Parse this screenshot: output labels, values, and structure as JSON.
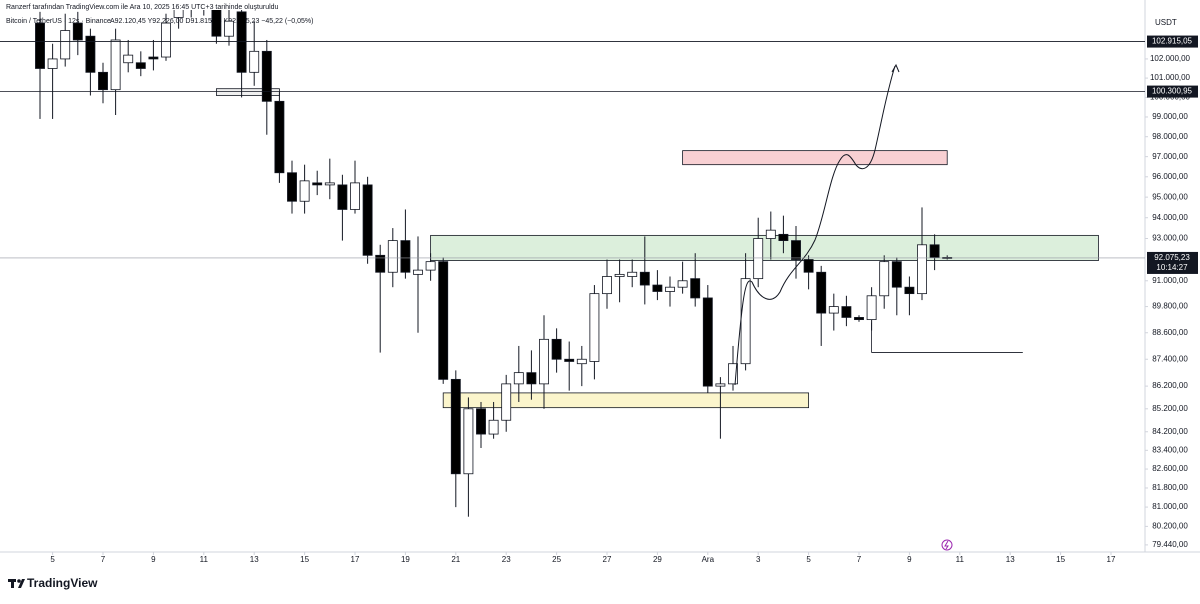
{
  "header": {
    "credit": "Ranzerf tarafından TradingView.com ile Ara 10, 2025 16:45 UTC+3 tarihinde oluşturuldu",
    "symbol": "Bitcoin / TetherUS · 12s · Binance",
    "ohlc": "A92.120,45 Y92.226,00 D91.815,35 K92.075,23 −45,22 (−0,05%)"
  },
  "chart_data": {
    "type": "candlestick",
    "currency": "USDT",
    "log_scale": true,
    "up_color": "#ffffff",
    "down_color": "#000000",
    "open": [
      103900,
      101500,
      102000,
      103900,
      103200,
      101300,
      100400,
      101800,
      101800,
      102100,
      102100,
      104200,
      105200,
      104800,
      104800,
      103200,
      104500,
      101300,
      102400,
      99800,
      96200,
      94800,
      95700,
      95600,
      95600,
      94400,
      95600,
      92200,
      91400,
      92900,
      91300,
      91500,
      91900,
      86500,
      82400,
      85200,
      84100,
      84700,
      86300,
      86800,
      86300,
      88300,
      87400,
      87200,
      87300,
      90400,
      91200,
      91200,
      91400,
      90800,
      90500,
      90700,
      91100,
      90200,
      86200,
      86300,
      87200,
      91100,
      93000,
      93200,
      92900,
      92000,
      91400,
      89500,
      89800,
      89300,
      89200,
      90300,
      91900,
      90700,
      90400,
      92700,
      92100
    ],
    "high": [
      104500,
      102800,
      104400,
      104500,
      103600,
      101800,
      103600,
      103000,
      102400,
      103000,
      104400,
      106000,
      106000,
      106100,
      105200,
      104800,
      105000,
      104000,
      103000,
      100300,
      96800,
      96600,
      96300,
      96900,
      96100,
      96800,
      96000,
      92700,
      93500,
      94400,
      93100,
      92300,
      92100,
      86900,
      85700,
      85500,
      85500,
      86700,
      88000,
      87800,
      89400,
      88800,
      88200,
      88000,
      90800,
      92000,
      92000,
      92000,
      93100,
      91500,
      91200,
      91900,
      92300,
      90800,
      86600,
      88000,
      92300,
      94000,
      94300,
      94100,
      93600,
      92200,
      91700,
      90400,
      90300,
      89400,
      90700,
      92200,
      92100,
      91200,
      94500,
      93200,
      92200
    ],
    "low": [
      98900,
      98900,
      101600,
      102200,
      100100,
      99700,
      99100,
      101300,
      101100,
      101400,
      101900,
      103600,
      104200,
      104300,
      102800,
      102700,
      100000,
      100600,
      98100,
      95700,
      94200,
      94200,
      95100,
      94900,
      92900,
      94200,
      91800,
      87700,
      90700,
      91100,
      88600,
      91000,
      86300,
      81000,
      80600,
      83500,
      83900,
      84200,
      85500,
      85600,
      85200,
      86800,
      86000,
      86200,
      86500,
      89700,
      90000,
      90700,
      89900,
      90100,
      89800,
      90400,
      89800,
      85900,
      83900,
      86000,
      86900,
      90700,
      92000,
      92300,
      91100,
      90600,
      88000,
      88700,
      88900,
      89100,
      88700,
      89700,
      89400,
      89400,
      90100,
      91500,
      92000
    ],
    "close": [
      101500,
      102000,
      103500,
      103000,
      101300,
      100400,
      103000,
      102200,
      101500,
      102000,
      103900,
      105000,
      104800,
      105300,
      103200,
      104000,
      101300,
      102400,
      99800,
      96200,
      94800,
      95800,
      95600,
      95700,
      94400,
      95700,
      92200,
      91400,
      92900,
      91400,
      91500,
      91900,
      86500,
      82400,
      85200,
      84100,
      84700,
      86300,
      86800,
      86300,
      88300,
      87400,
      87300,
      87400,
      90400,
      91200,
      91300,
      91400,
      90800,
      90500,
      90700,
      91000,
      90200,
      86200,
      86300,
      87200,
      91100,
      93000,
      93400,
      92900,
      92000,
      91400,
      89500,
      89800,
      89300,
      89200,
      90300,
      91900,
      90700,
      90400,
      92700,
      92100,
      92075.23
    ],
    "ylim": [
      79150,
      104600
    ],
    "yticks": [
      {
        "value": 102000,
        "label": "102.000,00"
      },
      {
        "value": 101000,
        "label": "101.000,00"
      },
      {
        "value": 100000,
        "label": "100.000,00"
      },
      {
        "value": 99000,
        "label": "99.000,00"
      },
      {
        "value": 98000,
        "label": "98.000,00"
      },
      {
        "value": 97000,
        "label": "97.000,00"
      },
      {
        "value": 96000,
        "label": "96.000,00"
      },
      {
        "value": 95000,
        "label": "95.000,00"
      },
      {
        "value": 94000,
        "label": "94.000,00"
      },
      {
        "value": 93000,
        "label": "93.000,00"
      },
      {
        "value": 91000,
        "label": "91.000,00"
      },
      {
        "value": 89800,
        "label": "89.800,00"
      },
      {
        "value": 88600,
        "label": "88.600,00"
      },
      {
        "value": 87400,
        "label": "87.400,00"
      },
      {
        "value": 86200,
        "label": "86.200,00"
      },
      {
        "value": 85200,
        "label": "85.200,00"
      },
      {
        "value": 84200,
        "label": "84.200,00"
      },
      {
        "value": 83400,
        "label": "83.400,00"
      },
      {
        "value": 82600,
        "label": "82.600,00"
      },
      {
        "value": 81800,
        "label": "81.800,00"
      },
      {
        "value": 81000,
        "label": "81.000,00"
      },
      {
        "value": 80200,
        "label": "80.200,00"
      },
      {
        "value": 79440,
        "label": "79.440,00"
      }
    ],
    "xlim": [
      -3.175,
      87.698
    ],
    "xticks": [
      {
        "value": 1,
        "label": "5"
      },
      {
        "value": 5,
        "label": "7"
      },
      {
        "value": 9,
        "label": "9"
      },
      {
        "value": 13,
        "label": "11"
      },
      {
        "value": 17,
        "label": "13"
      },
      {
        "value": 21,
        "label": "15"
      },
      {
        "value": 25,
        "label": "17"
      },
      {
        "value": 29,
        "label": "19"
      },
      {
        "value": 33,
        "label": "21"
      },
      {
        "value": 37,
        "label": "23"
      },
      {
        "value": 41,
        "label": "25"
      },
      {
        "value": 45,
        "label": "27"
      },
      {
        "value": 49,
        "label": "29"
      },
      {
        "value": 53,
        "label": "Ara"
      },
      {
        "value": 57,
        "label": "3"
      },
      {
        "value": 61,
        "label": "5"
      },
      {
        "value": 65,
        "label": "7"
      },
      {
        "value": 69,
        "label": "9"
      },
      {
        "value": 73,
        "label": "11"
      },
      {
        "value": 77,
        "label": "13"
      },
      {
        "value": 81,
        "label": "15"
      },
      {
        "value": 85,
        "label": "17"
      }
    ],
    "levels": [
      {
        "value": 102915.05,
        "label": "102.915,05"
      },
      {
        "value": 100300.95,
        "label": "100.300,95"
      }
    ],
    "last": {
      "value": 92075.23,
      "label": "92.075,23",
      "countdown": "10:14:27"
    },
    "zones": [
      {
        "top": 93150,
        "bottom": 91950,
        "from": 31,
        "to": 84,
        "color": "#dcefdc"
      },
      {
        "top": 97300,
        "bottom": 96600,
        "from": 51,
        "to": 72,
        "color": "#f8d0d3"
      },
      {
        "top": 85900,
        "bottom": 85250,
        "from": 32,
        "to": 61,
        "color": "#fbf5cc"
      },
      {
        "top": 100450,
        "bottom": 100100,
        "from": 14,
        "to": 19,
        "color": "#f0f0f0"
      }
    ],
    "target_line": {
      "value": 87700,
      "from": 66,
      "to": 78
    }
  },
  "footer": {
    "brand": "TradingView"
  }
}
